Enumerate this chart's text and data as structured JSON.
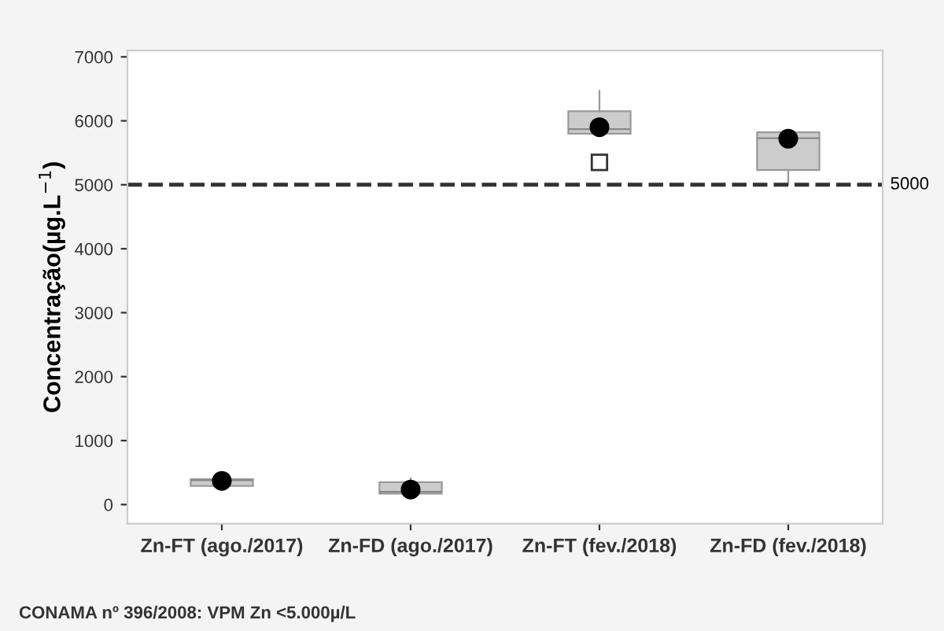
{
  "chart_data": {
    "type": "box",
    "ylabel": "Concentração(µg.L$^{−1}$)",
    "categories": [
      "Zn-FT (ago./2017)",
      "Zn-FD (ago./2017)",
      "Zn-FT (fev./2018)",
      "Zn-FD (fev./2018)"
    ],
    "boxes": [
      {
        "low": 290,
        "q1": 290,
        "median": 380,
        "q3": 395,
        "high": 490,
        "mean": 370
      },
      {
        "low": 170,
        "q1": 170,
        "median": 200,
        "q3": 350,
        "high": 410,
        "mean": 235
      },
      {
        "low": 5800,
        "q1": 5800,
        "median": 5870,
        "q3": 6150,
        "high": 6470,
        "mean": 5900,
        "outliers": [
          5350
        ]
      },
      {
        "low": 5010,
        "q1": 5230,
        "median": 5730,
        "q3": 5820,
        "high": 5820,
        "mean": 5720
      }
    ],
    "color": "#cccccc",
    "ylim": [
      -300,
      7100
    ],
    "yticks": [
      0,
      1000,
      2000,
      3000,
      4000,
      5000,
      6000,
      7000
    ],
    "grid": false,
    "ref_lines": [
      {
        "axis": "y",
        "value": 5000,
        "label": "5000",
        "line_style": "dashed",
        "color": "#333333"
      }
    ],
    "annotations": [
      "CONAMA nº 396/2008: VPM Zn <5.000µ/L"
    ]
  }
}
